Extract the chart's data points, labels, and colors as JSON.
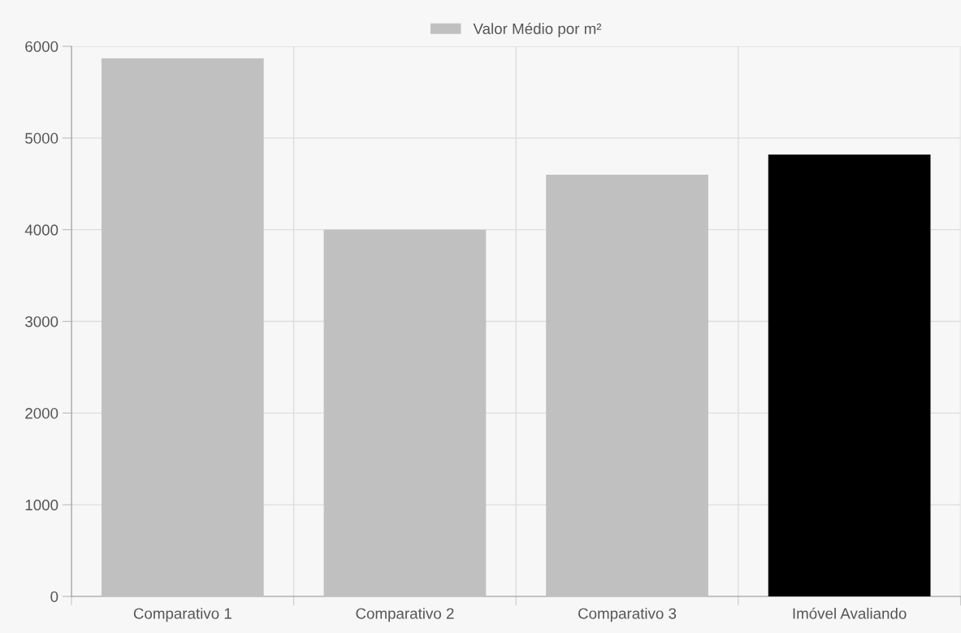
{
  "chart_data": {
    "type": "bar",
    "categories": [
      "Comparativo 1",
      "Comparativo 2",
      "Comparativo 3",
      "Imóvel Avaliando"
    ],
    "series": [
      {
        "name": "Valor Médio por m²",
        "color": "#c0c0c0",
        "colors": [
          "#c0c0c0",
          "#c0c0c0",
          "#c0c0c0",
          "#000000"
        ],
        "values": [
          5870,
          4000,
          4600,
          4820
        ]
      }
    ],
    "ylim": [
      0,
      6000
    ],
    "yticks": [
      0,
      1000,
      2000,
      3000,
      4000,
      5000,
      6000
    ],
    "grid": true,
    "legend": "top"
  }
}
